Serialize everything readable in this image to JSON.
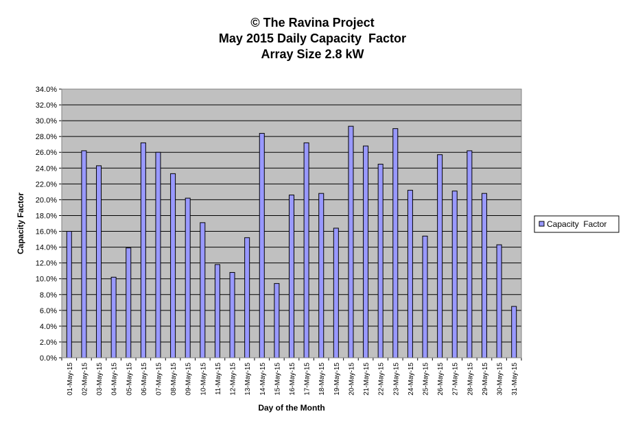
{
  "chart_data": {
    "type": "bar",
    "title_lines": [
      "© The Ravina Project",
      "May 2015 Daily Capacity  Factor",
      "Array Size 2.8 kW"
    ],
    "xlabel": "Day of the Month",
    "ylabel": "Capacity Factor",
    "ylim": [
      0,
      34
    ],
    "ytick_step": 2,
    "ytick_format": "percent_1dp",
    "grid": true,
    "legend_position": "right",
    "colors": {
      "bar_fill": "#9999FF",
      "bar_stroke": "#000000",
      "plot_bg": "#C0C0C0"
    },
    "categories": [
      "01-May-15",
      "02-May-15",
      "03-May-15",
      "04-May-15",
      "05-May-15",
      "06-May-15",
      "07-May-15",
      "08-May-15",
      "09-May-15",
      "10-May-15",
      "11-May-15",
      "12-May-15",
      "13-May-15",
      "14-May-15",
      "15-May-15",
      "16-May-15",
      "17-May-15",
      "18-May-15",
      "19-May-15",
      "20-May-15",
      "21-May-15",
      "22-May-15",
      "23-May-15",
      "24-May-15",
      "25-May-15",
      "26-May-15",
      "27-May-15",
      "28-May-15",
      "29-May-15",
      "30-May-15",
      "31-May-15"
    ],
    "series": [
      {
        "name": "Capacity  Factor",
        "values": [
          16.0,
          26.2,
          24.3,
          10.2,
          13.9,
          27.2,
          26.0,
          23.3,
          20.2,
          17.1,
          11.8,
          10.8,
          15.2,
          28.4,
          9.4,
          20.6,
          27.2,
          20.8,
          16.4,
          29.3,
          26.8,
          24.5,
          29.0,
          21.2,
          15.4,
          25.7,
          21.1,
          26.2,
          20.8,
          14.3,
          6.5
        ]
      }
    ]
  }
}
